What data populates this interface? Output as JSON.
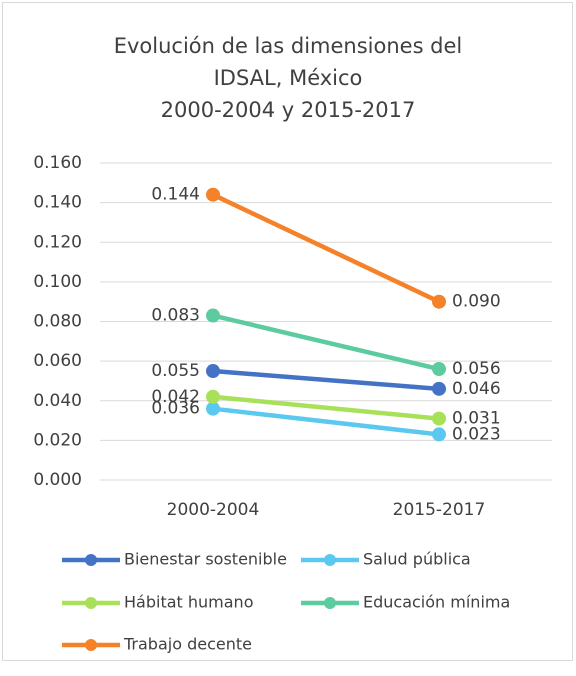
{
  "chart_data": {
    "type": "line",
    "title": [
      "Evolución de las dimensiones del",
      "IDSAL, México",
      "2000-2004 y 2015-2017"
    ],
    "categories": [
      "2000-2004",
      "2015-2017"
    ],
    "series": [
      {
        "name": "Bienestar sostenible",
        "color": "#4472c4",
        "values": [
          0.055,
          0.046
        ]
      },
      {
        "name": "Salud pública",
        "color": "#5bc8f0",
        "values": [
          0.036,
          0.023
        ]
      },
      {
        "name": "Hábitat humano",
        "color": "#a9e05a",
        "values": [
          0.042,
          0.031
        ]
      },
      {
        "name": "Educación mínima",
        "color": "#5ccb9f",
        "values": [
          0.083,
          0.056
        ]
      },
      {
        "name": "Trabajo decente",
        "color": "#f58229",
        "values": [
          0.144,
          0.09
        ],
        "value_labels": [
          "0.144",
          "0.090"
        ]
      }
    ],
    "ylim": [
      0,
      0.16
    ],
    "yticks": [
      {
        "value": 0,
        "label": "0.000"
      },
      {
        "value": 0.02,
        "label": "0.020"
      },
      {
        "value": 0.04,
        "label": "0.040"
      },
      {
        "value": 0.06,
        "label": "0.060"
      },
      {
        "value": 0.08,
        "label": "0.080"
      },
      {
        "value": 0.1,
        "label": "0.100"
      },
      {
        "value": 0.12,
        "label": "0.120"
      },
      {
        "value": 0.14,
        "label": "0.140"
      },
      {
        "value": 0.16,
        "label": "0.160"
      }
    ],
    "grid": true
  }
}
